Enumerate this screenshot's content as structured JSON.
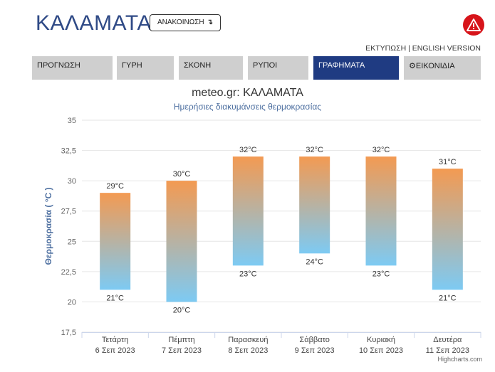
{
  "header": {
    "title": "ΚΑΛΑΜΑΤΑ",
    "announce_label": "ΑΝΑΚΟΙΝΩΣΗ",
    "announce_arrow": "↴",
    "links": "ΕΚΤΥΠΩΣΗ | ENGLISH VERSION"
  },
  "nav": {
    "tabs": [
      {
        "label": "ΠΡΟΓΝΩΣΗ"
      },
      {
        "label": "ΓΥΡΗ"
      },
      {
        "label": "ΣΚΟΝΗ"
      },
      {
        "label": "ΡΥΠΟΙ"
      },
      {
        "label": "ΓΡΑΦΗΜΑΤΑ"
      },
      {
        "label": "⚙ΕΙΚΟΝΙΔΙΑ"
      }
    ],
    "active_index": 4
  },
  "chart_data": {
    "type": "bar",
    "subtype": "columnrange",
    "title": "meteo.gr: ΚΑΛΑΜΑΤΑ",
    "subtitle": "Ημερήσιες διακυμάνσεις θερμοκρασίας",
    "ylabel": "Θερμοκρασία ( °C )",
    "ylim": [
      17.5,
      35
    ],
    "yticks": [
      "17,5",
      "20",
      "22,5",
      "25",
      "27,5",
      "30",
      "32,5",
      "35"
    ],
    "categories": [
      {
        "day": "Τετάρτη",
        "date": "6 Σεπ 2023"
      },
      {
        "day": "Πέμπτη",
        "date": "7 Σεπ 2023"
      },
      {
        "day": "Παρασκευή",
        "date": "8 Σεπ 2023"
      },
      {
        "day": "Σάββατο",
        "date": "9 Σεπ 2023"
      },
      {
        "day": "Κυριακή",
        "date": "10 Σεπ 2023"
      },
      {
        "day": "Δευτέρα",
        "date": "11 Σεπ 2023"
      }
    ],
    "series": [
      {
        "low": [
          21,
          20,
          23,
          24,
          23,
          21
        ],
        "high": [
          29,
          30,
          32,
          32,
          32,
          31
        ]
      }
    ],
    "high_labels": [
      "29°C",
      "30°C",
      "32°C",
      "32°C",
      "32°C",
      "31°C"
    ],
    "low_labels": [
      "21°C",
      "20°C",
      "23°C",
      "24°C",
      "23°C",
      "21°C"
    ],
    "grid": true,
    "colors": {
      "top": "#f39a52",
      "bottom": "#7dcaf3",
      "grid": "#e6e6e6",
      "axis_label": "#4d6fa0"
    },
    "credits": "Highcharts.com"
  }
}
